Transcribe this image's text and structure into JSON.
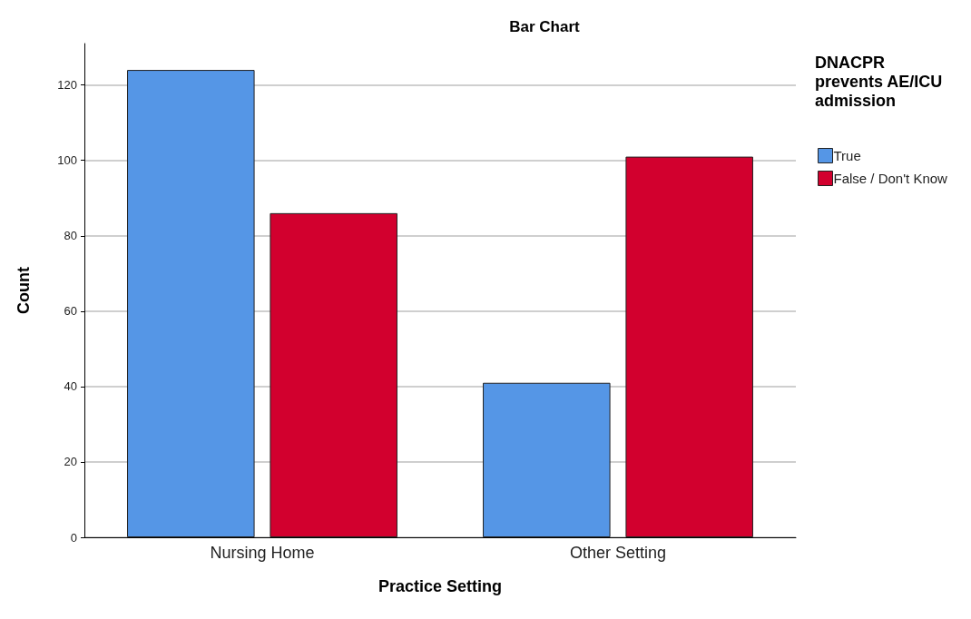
{
  "chart_data": {
    "type": "bar",
    "title": "Bar Chart",
    "xlabel": "Practice Setting",
    "ylabel": "Count",
    "legend_title": "DNACPR prevents AE/ICU admission",
    "categories": [
      "Nursing Home",
      "Other Setting"
    ],
    "series": [
      {
        "name": "True",
        "color": "#5596e6",
        "values": [
          124,
          41
        ]
      },
      {
        "name": "False / Don't Know",
        "color": "#d2002e",
        "values": [
          86,
          101
        ]
      }
    ],
    "ylim": [
      0,
      131
    ],
    "yticks": [
      0,
      20,
      40,
      60,
      80,
      100,
      120
    ],
    "grid": "y",
    "legend": "top right"
  }
}
